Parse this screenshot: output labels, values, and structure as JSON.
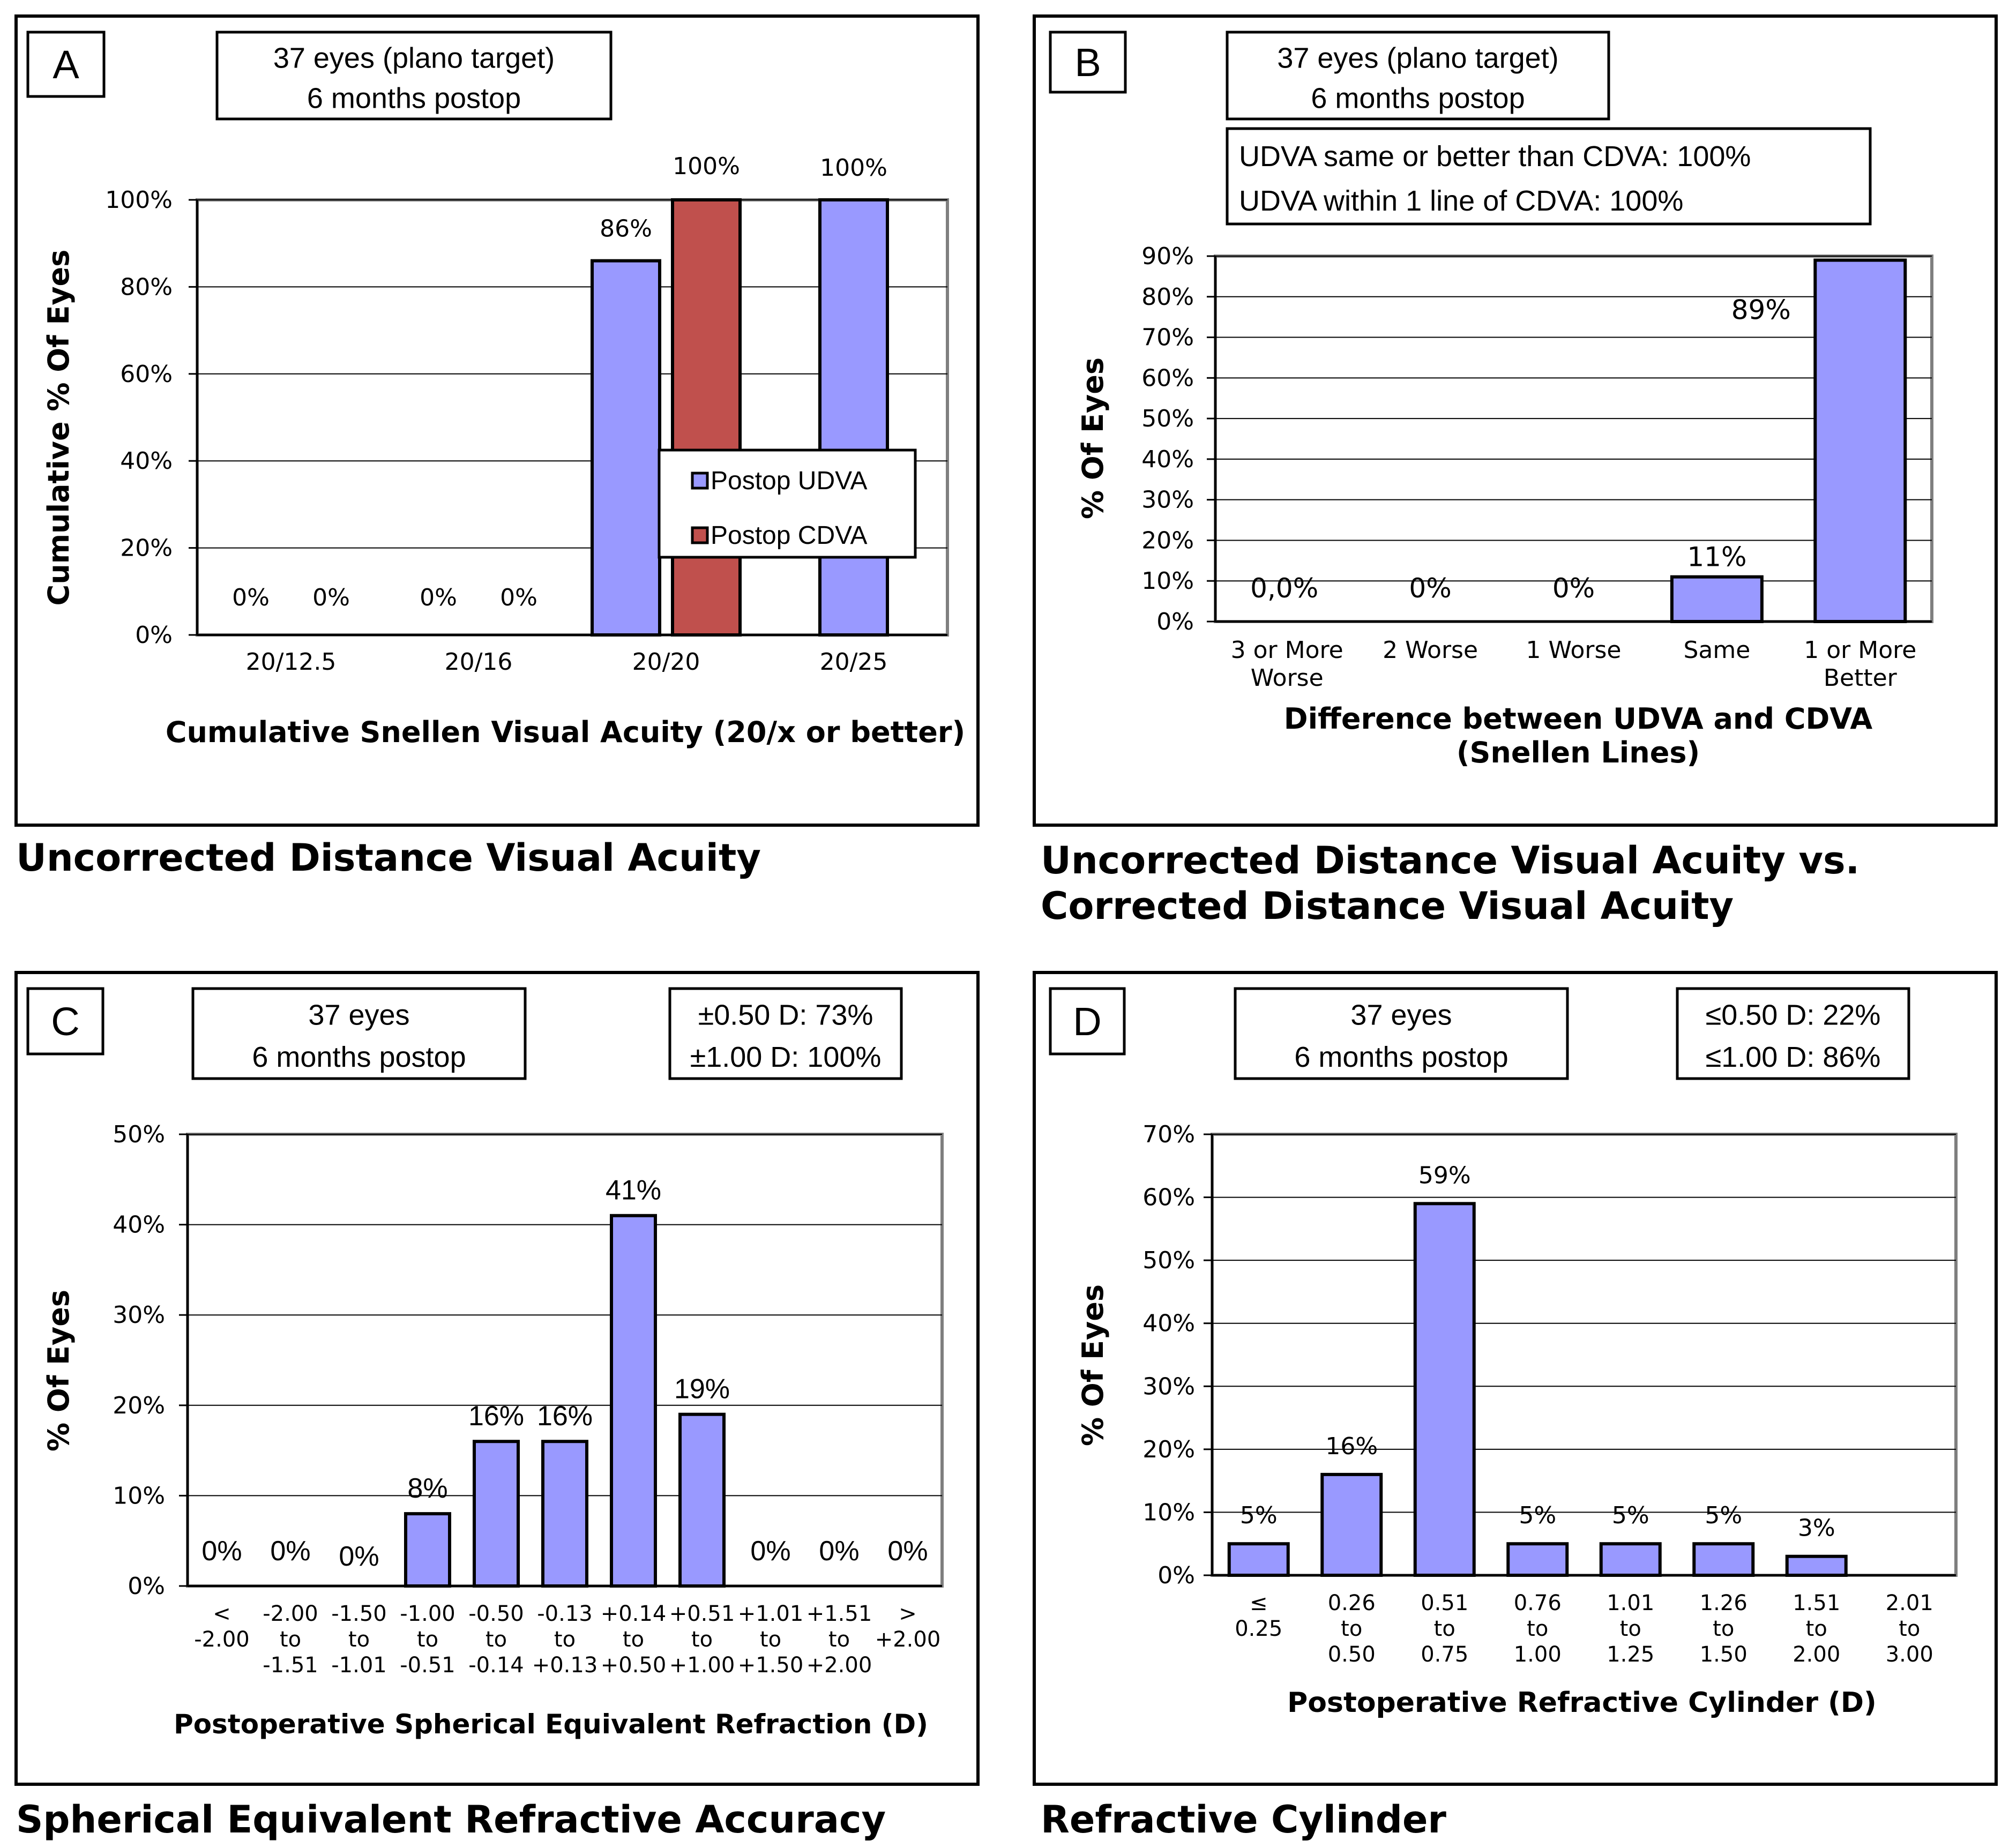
{
  "colors": {
    "udva": "#9999ff",
    "cdva": "#c0504d",
    "grid": "#000000",
    "frame": "#7f7f7f"
  },
  "chart_data": [
    {
      "id": "A",
      "type": "bar",
      "letter": "A",
      "info_lines": [
        "37 eyes (plano target)",
        "6 months postop"
      ],
      "caption": "Uncorrected Distance Visual Acuity",
      "xlabel": "Cumulative Snellen Visual Acuity (20/x or better)",
      "ylabel": "Cumulative % Of Eyes",
      "categories": [
        "20/12.5",
        "20/16",
        "20/20",
        "20/25"
      ],
      "series": [
        {
          "name": "Postop UDVA",
          "values": [
            0,
            0,
            86,
            100
          ],
          "labels": [
            "0%",
            "0%",
            "86%",
            "100%"
          ]
        },
        {
          "name": "Postop CDVA",
          "values": [
            0,
            0,
            100,
            null
          ],
          "labels": [
            "0%",
            "0%",
            "100%",
            ""
          ]
        }
      ],
      "ylim": [
        0,
        100
      ],
      "yticks": [
        "0%",
        "20%",
        "40%",
        "60%",
        "80%",
        "100%"
      ],
      "legend": [
        "Postop UDVA",
        "Postop CDVA"
      ],
      "legend_position": "right"
    },
    {
      "id": "B",
      "type": "bar",
      "letter": "B",
      "info_lines": [
        "37 eyes (plano target)",
        "6 months postop"
      ],
      "note_lines": [
        "UDVA same or better than CDVA: 100%",
        "UDVA within 1 line of CDVA: 100%"
      ],
      "caption_lines": [
        "Uncorrected Distance Visual Acuity vs.",
        "Corrected Distance Visual Acuity"
      ],
      "xlabel_lines": [
        "Difference between  UDVA and CDVA",
        "(Snellen Lines)"
      ],
      "ylabel": "% Of Eyes",
      "categories": [
        [
          "3 or More",
          "Worse"
        ],
        [
          "2 Worse"
        ],
        [
          "1 Worse"
        ],
        [
          "Same"
        ],
        [
          "1 or More",
          "Better"
        ]
      ],
      "values": [
        0,
        0,
        0,
        11,
        89
      ],
      "labels": [
        "0,0%",
        "0%",
        "0%",
        "11%",
        "89%"
      ],
      "ylim": [
        0,
        90
      ],
      "yticks": [
        "0%",
        "10%",
        "20%",
        "30%",
        "40%",
        "50%",
        "60%",
        "70%",
        "80%",
        "90%"
      ]
    },
    {
      "id": "C",
      "type": "bar",
      "letter": "C",
      "info_lines": [
        "37 eyes",
        "6 months postop"
      ],
      "note_lines": [
        "±0.50 D: 73%",
        "±1.00 D: 100%"
      ],
      "caption": "Spherical Equivalent Refractive Accuracy",
      "xlabel": "Postoperative Spherical Equivalent Refraction (D)",
      "ylabel": "% Of Eyes",
      "categories": [
        [
          "<",
          "-2.00"
        ],
        [
          "-2.00",
          "to",
          "-1.51"
        ],
        [
          "-1.50",
          "to",
          "-1.01"
        ],
        [
          "-1.00",
          "to",
          "-0.51"
        ],
        [
          "-0.50",
          "to",
          "-0.14"
        ],
        [
          "-0.13",
          "to",
          "+0.13"
        ],
        [
          "+0.14",
          "to",
          "+0.50"
        ],
        [
          "+0.51",
          "to",
          "+1.00"
        ],
        [
          "+1.01",
          "to",
          "+1.50"
        ],
        [
          "+1.51",
          "to",
          "+2.00"
        ],
        [
          ">",
          "+2.00"
        ]
      ],
      "values": [
        0,
        0,
        0,
        8,
        16,
        16,
        41,
        19,
        0,
        0,
        0
      ],
      "labels": [
        "0%",
        "0%",
        "0%",
        "8%",
        "16%",
        "16%",
        "41%",
        "19%",
        "0%",
        "0%",
        "0%"
      ],
      "ylim": [
        0,
        50
      ],
      "yticks": [
        "0%",
        "10%",
        "20%",
        "30%",
        "40%",
        "50%"
      ]
    },
    {
      "id": "D",
      "type": "bar",
      "letter": "D",
      "info_lines": [
        "37 eyes",
        "6 months postop"
      ],
      "note_lines": [
        "≤0.50 D: 22%",
        "≤1.00 D: 86%"
      ],
      "caption": "Refractive Cylinder",
      "xlabel": "Postoperative Refractive Cylinder (D)",
      "ylabel": "% Of Eyes",
      "categories": [
        [
          "≤",
          "0.25"
        ],
        [
          "0.26",
          "to",
          "0.50"
        ],
        [
          "0.51",
          "to",
          "0.75"
        ],
        [
          "0.76",
          "to",
          "1.00"
        ],
        [
          "1.01",
          "to",
          "1.25"
        ],
        [
          "1.26",
          "to",
          "1.50"
        ],
        [
          "1.51",
          "to",
          "2.00"
        ],
        [
          "2.01",
          "to",
          "3.00"
        ]
      ],
      "values": [
        5,
        16,
        59,
        5,
        5,
        5,
        3,
        0
      ],
      "labels": [
        "5%",
        "16%",
        "59%",
        "5%",
        "5%",
        "5%",
        "3%",
        ""
      ],
      "ylim": [
        0,
        70
      ],
      "yticks": [
        "0%",
        "10%",
        "20%",
        "30%",
        "40%",
        "50%",
        "60%",
        "70%"
      ]
    }
  ]
}
